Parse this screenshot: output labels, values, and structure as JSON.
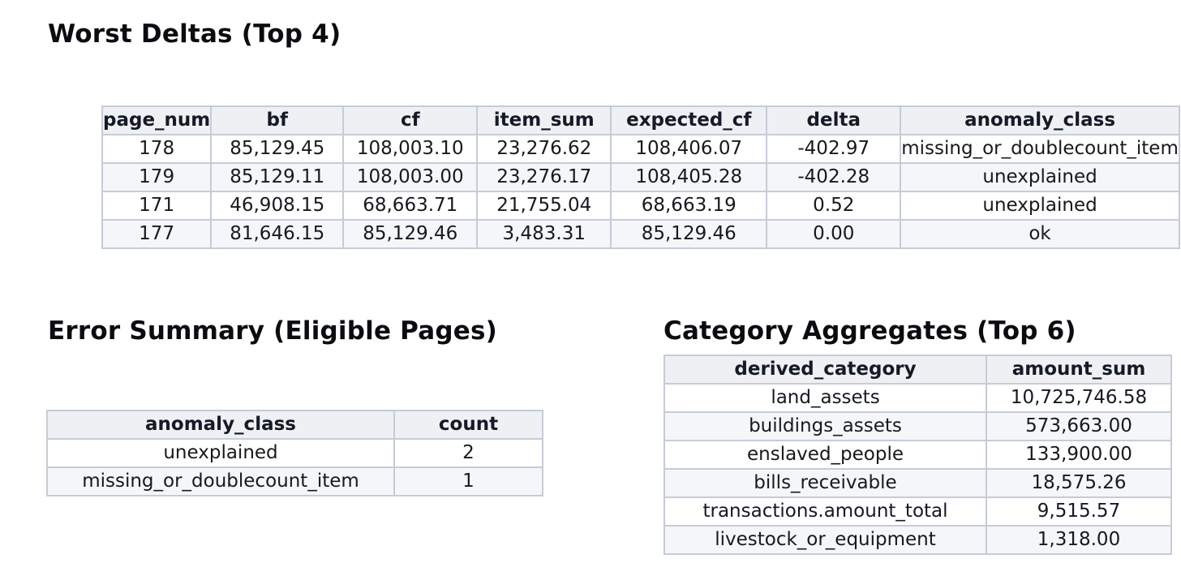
{
  "page": {
    "background": "#ffffff"
  },
  "colors": {
    "title_text": "#0a0c10",
    "header_bg": "#eef0f4",
    "header_text": "#141a26",
    "cell_text": "#17191d",
    "stripe_bg": "#f4f6f9",
    "border": "#c6ccd6"
  },
  "worst_deltas": {
    "title": "Worst Deltas (Top 4)",
    "columns": [
      "page_num",
      "bf",
      "cf",
      "item_sum",
      "expected_cf",
      "delta",
      "anomaly_class"
    ],
    "rows": [
      [
        "178",
        "85,129.45",
        "108,003.10",
        "23,276.62",
        "108,406.07",
        "-402.97",
        "missing_or_doublecount_item"
      ],
      [
        "179",
        "85,129.11",
        "108,003.00",
        "23,276.17",
        "108,405.28",
        "-402.28",
        "unexplained"
      ],
      [
        "171",
        "46,908.15",
        "68,663.71",
        "21,755.04",
        "68,663.19",
        "0.52",
        "unexplained"
      ],
      [
        "177",
        "81,646.15",
        "85,129.46",
        "3,483.31",
        "85,129.46",
        "0.00",
        "ok"
      ]
    ]
  },
  "error_summary": {
    "title": "Error Summary (Eligible Pages)",
    "columns": [
      "anomaly_class",
      "count"
    ],
    "rows": [
      [
        "unexplained",
        "2"
      ],
      [
        "missing_or_doublecount_item",
        "1"
      ]
    ]
  },
  "category_aggregates": {
    "title": "Category Aggregates (Top 6)",
    "columns": [
      "derived_category",
      "amount_sum"
    ],
    "rows": [
      [
        "land_assets",
        "10,725,746.58"
      ],
      [
        "buildings_assets",
        "573,663.00"
      ],
      [
        "enslaved_people",
        "133,900.00"
      ],
      [
        "bills_receivable",
        "18,575.26"
      ],
      [
        "transactions.amount_total",
        "9,515.57"
      ],
      [
        "livestock_or_equipment",
        "1,318.00"
      ]
    ]
  },
  "chart_data": [
    {
      "type": "table",
      "title": "Worst Deltas (Top 4)",
      "columns": [
        "page_num",
        "bf",
        "cf",
        "item_sum",
        "expected_cf",
        "delta",
        "anomaly_class"
      ],
      "rows": [
        [
          178,
          85129.45,
          108003.1,
          23276.62,
          108406.07,
          -402.97,
          "missing_or_doublecount_item"
        ],
        [
          179,
          85129.11,
          108003.0,
          23276.17,
          108405.28,
          -402.28,
          "unexplained"
        ],
        [
          171,
          46908.15,
          68663.71,
          21755.04,
          68663.19,
          0.52,
          "unexplained"
        ],
        [
          177,
          81646.15,
          85129.46,
          3483.31,
          85129.46,
          0.0,
          "ok"
        ]
      ]
    },
    {
      "type": "table",
      "title": "Error Summary (Eligible Pages)",
      "columns": [
        "anomaly_class",
        "count"
      ],
      "rows": [
        [
          "unexplained",
          2
        ],
        [
          "missing_or_doublecount_item",
          1
        ]
      ]
    },
    {
      "type": "table",
      "title": "Category Aggregates (Top 6)",
      "columns": [
        "derived_category",
        "amount_sum"
      ],
      "rows": [
        [
          "land_assets",
          10725746.58
        ],
        [
          "buildings_assets",
          573663.0
        ],
        [
          "enslaved_people",
          133900.0
        ],
        [
          "bills_receivable",
          18575.26
        ],
        [
          "transactions.amount_total",
          9515.57
        ],
        [
          "livestock_or_equipment",
          1318.0
        ]
      ]
    }
  ]
}
